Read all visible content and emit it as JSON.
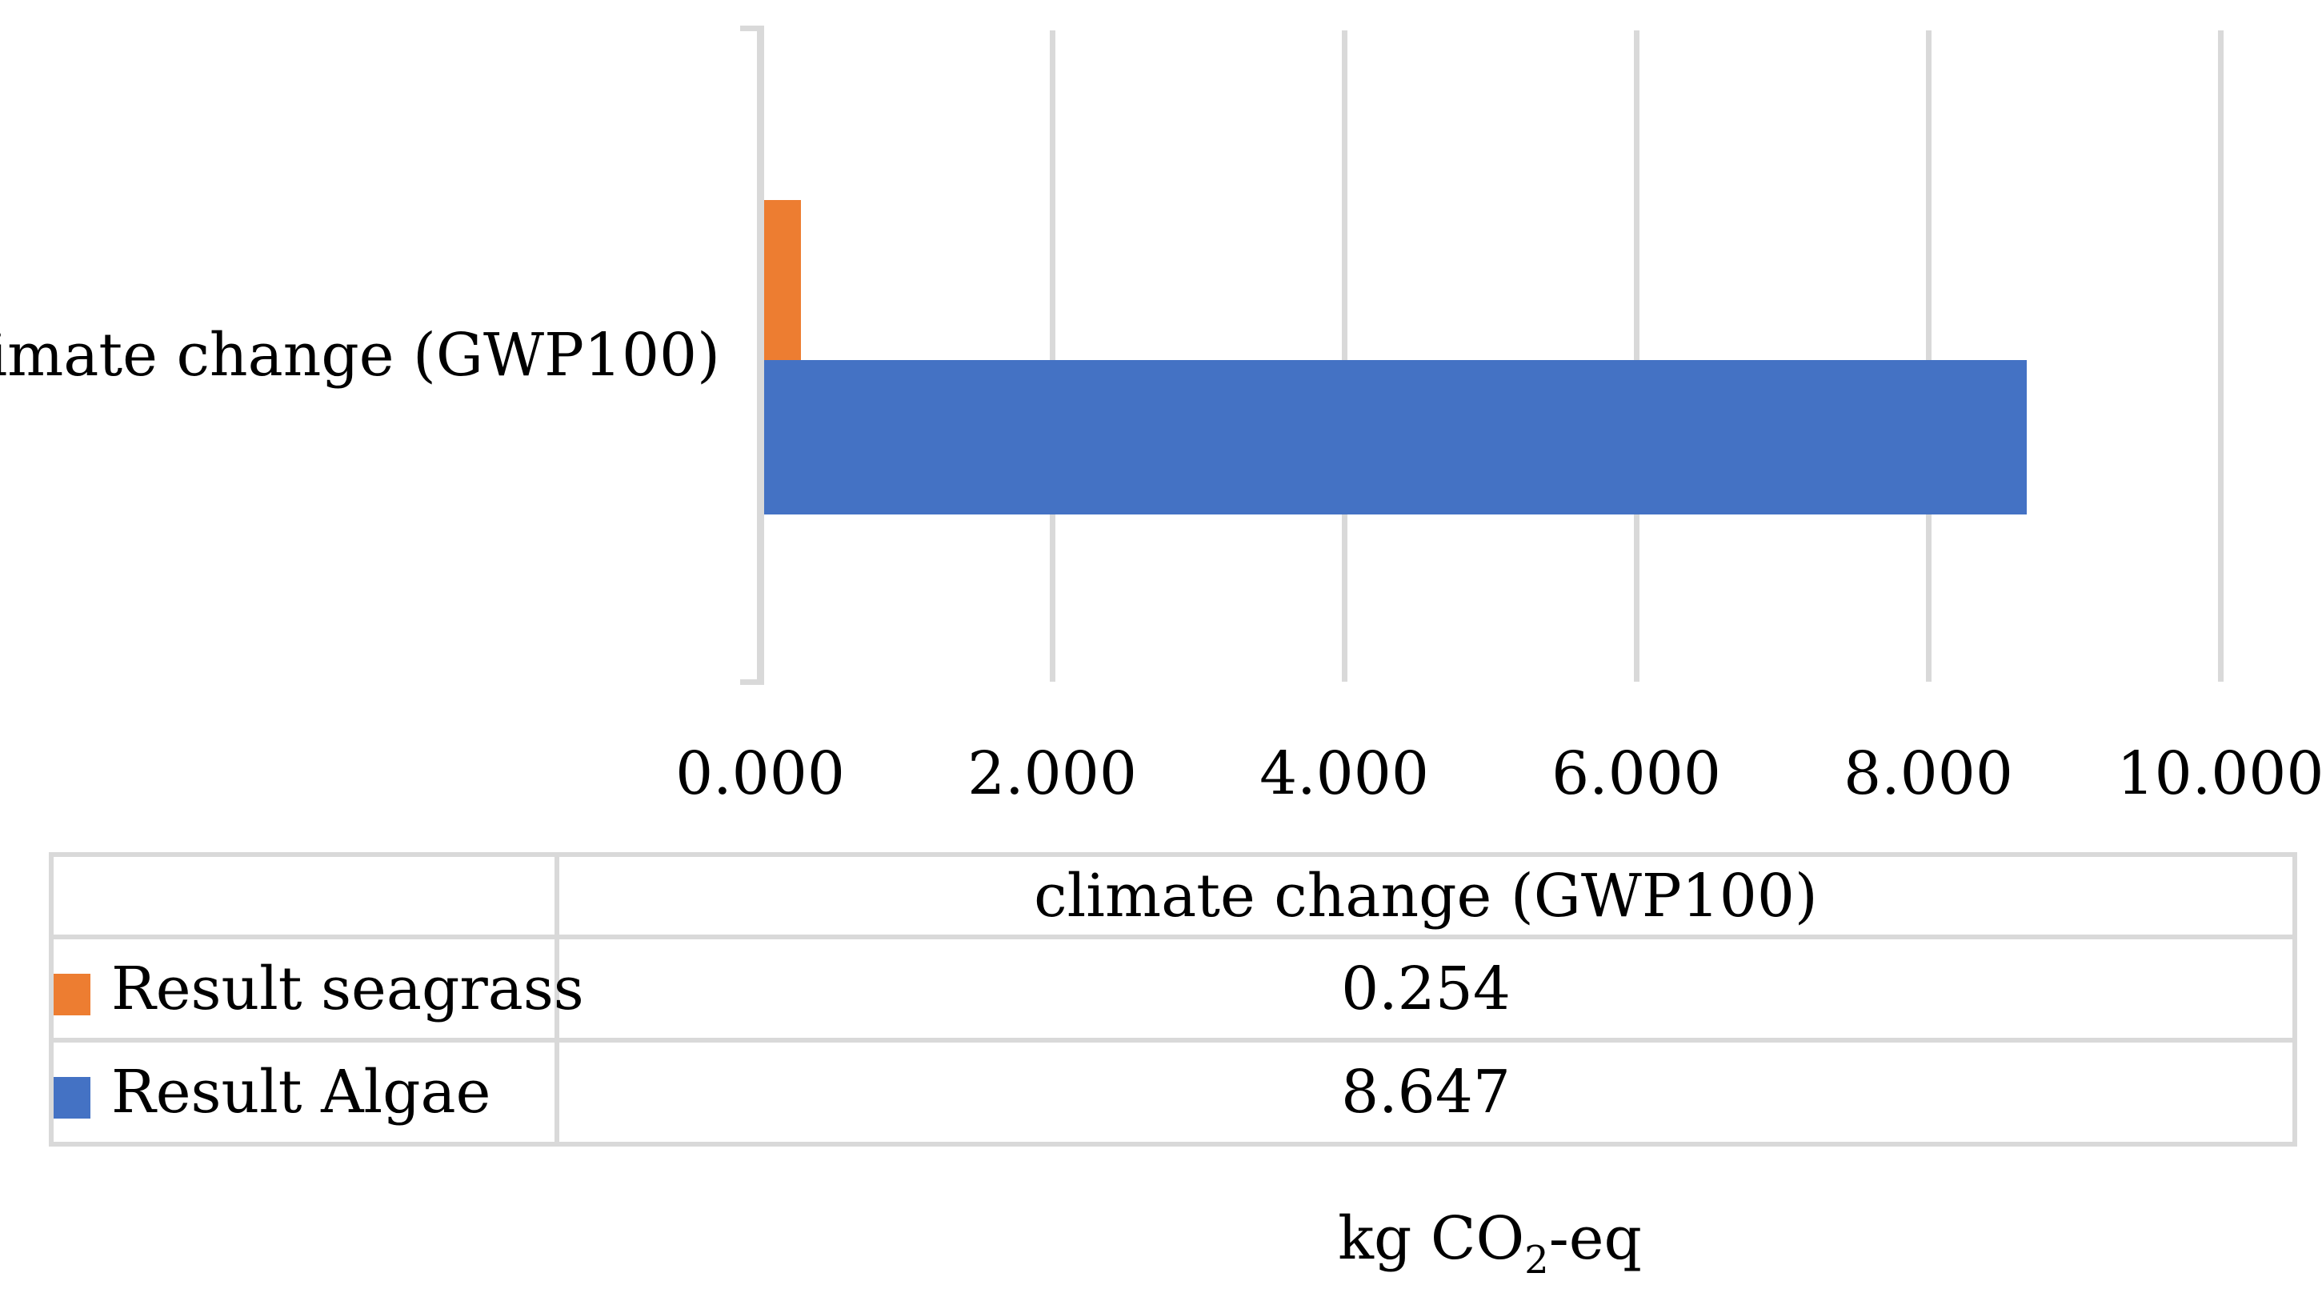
{
  "chart_data": {
    "type": "bar",
    "orientation": "horizontal",
    "categories": [
      "climate change (GWP100)"
    ],
    "series": [
      {
        "name": "Result seagrass",
        "values": [
          0.254
        ],
        "color": "#ED7D31"
      },
      {
        "name": "Result Algae",
        "values": [
          8.647
        ],
        "color": "#4472C4"
      }
    ],
    "x_ticks": [
      "0.000",
      "2.000",
      "4.000",
      "6.000",
      "8.000",
      "10.000"
    ],
    "xlim": [
      0,
      10
    ],
    "xlabel_pre": "kg CO",
    "xlabel_sub": "2",
    "xlabel_post": "-eq",
    "grid": true,
    "gridline_color": "#D9D9D9",
    "legend_position": "bottom-table"
  },
  "table": {
    "header": "climate change (GWP100)",
    "values": [
      "0.254",
      "8.647"
    ]
  }
}
